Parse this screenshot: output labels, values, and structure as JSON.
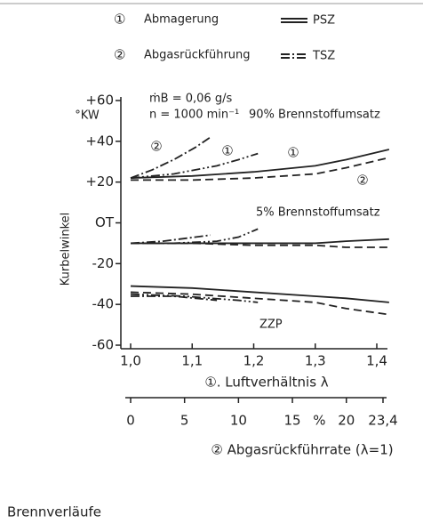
{
  "chart_data": {
    "type": "line",
    "legend": [
      {
        "number": "①",
        "label": "Abmagerung",
        "kind": "PSZ"
      },
      {
        "number": "②",
        "label": "Abgasrückführung",
        "kind": "TSZ"
      }
    ],
    "annotations": [
      "ṁB = 0,06 g/s",
      "n  = 1000 min⁻¹",
      "90% Brennstoffumsatz",
      "5% Brennstoffumsatz",
      "ZZP"
    ],
    "curve_labels": [
      "②",
      "①",
      "①",
      "②"
    ],
    "ylabel": "Kurbelwinkel",
    "yunit": "°KW",
    "xlabel": "①. Luftverhältnis λ",
    "x2label": "② Abgasrückführrate (λ=1)",
    "x2unit": "%",
    "caption": "Brennverläufe",
    "xlim": [
      1.0,
      1.4
    ],
    "xticks": [
      {
        "value": 1.0,
        "label": "1,0"
      },
      {
        "value": 1.1,
        "label": "1,1"
      },
      {
        "value": 1.2,
        "label": "1,2"
      },
      {
        "value": 1.3,
        "label": "1,3"
      },
      {
        "value": 1.4,
        "label": "1,4"
      }
    ],
    "x2lim": [
      0,
      23.4
    ],
    "x2ticks": [
      0,
      5,
      10,
      15,
      20,
      {
        "value": 23.4,
        "label": "23,4"
      }
    ],
    "ylim": [
      -60,
      60
    ],
    "yticks": [
      {
        "value": 60,
        "label": "+60"
      },
      {
        "value": 40,
        "label": "+40"
      },
      {
        "value": 20,
        "label": "+20"
      },
      {
        "value": 0,
        "label": "OT"
      },
      -20,
      -40,
      -60
    ],
    "series": [
      {
        "style": "solid",
        "color": "#222",
        "x": [
          1.0,
          1.1,
          1.2,
          1.3,
          1.35,
          1.42
        ],
        "values": [
          22,
          23,
          25,
          28,
          31,
          36
        ]
      },
      {
        "style": "dashed",
        "color": "#222",
        "x": [
          1.0,
          1.1,
          1.2,
          1.3,
          1.35,
          1.42
        ],
        "values": [
          21,
          21,
          22,
          24,
          27,
          32
        ]
      },
      {
        "style": "solid",
        "color": "#222",
        "x": [
          1.0,
          1.1,
          1.2,
          1.3,
          1.35,
          1.42
        ],
        "values": [
          -10,
          -10,
          -10,
          -10,
          -9,
          -8
        ]
      },
      {
        "style": "dashed",
        "color": "#222",
        "x": [
          1.0,
          1.1,
          1.2,
          1.3,
          1.35,
          1.42
        ],
        "values": [
          -10,
          -10,
          -11,
          -11,
          -12,
          -12
        ]
      },
      {
        "style": "solid",
        "color": "#222",
        "x": [
          1.0,
          1.1,
          1.2,
          1.3,
          1.35,
          1.42
        ],
        "values": [
          -31,
          -32,
          -34,
          -36,
          -37,
          -39
        ]
      },
      {
        "style": "dashed",
        "color": "#222",
        "x": [
          1.0,
          1.1,
          1.2,
          1.3,
          1.35,
          1.42
        ],
        "values": [
          -34,
          -35,
          -37,
          -39,
          -42,
          -45
        ]
      },
      {
        "style": "dashdot",
        "color": "#222",
        "axis": "x2",
        "x": [
          0,
          2,
          4,
          6,
          7.4
        ],
        "values": [
          22,
          26,
          31,
          37,
          42
        ]
      },
      {
        "style": "dashdotdot",
        "color": "#222",
        "axis": "x2",
        "x": [
          0,
          4,
          8,
          10,
          11.8
        ],
        "values": [
          22,
          24,
          28,
          31,
          34
        ]
      },
      {
        "style": "dashdot",
        "color": "#222",
        "axis": "x2",
        "x": [
          0,
          3,
          6,
          7.4
        ],
        "values": [
          -10,
          -9,
          -7,
          -6
        ]
      },
      {
        "style": "dashdotdot",
        "color": "#222",
        "axis": "x2",
        "x": [
          0,
          4,
          8,
          10,
          11.8
        ],
        "values": [
          -10,
          -10,
          -9,
          -7,
          -3
        ]
      },
      {
        "style": "dashdot",
        "color": "#222",
        "axis": "x2",
        "x": [
          0,
          4,
          8
        ],
        "values": [
          -36,
          -36,
          -38
        ]
      },
      {
        "style": "dashdotdot",
        "color": "#222",
        "axis": "x2",
        "x": [
          0,
          5,
          10,
          11.8
        ],
        "values": [
          -35,
          -36,
          -38,
          -39
        ]
      }
    ]
  }
}
